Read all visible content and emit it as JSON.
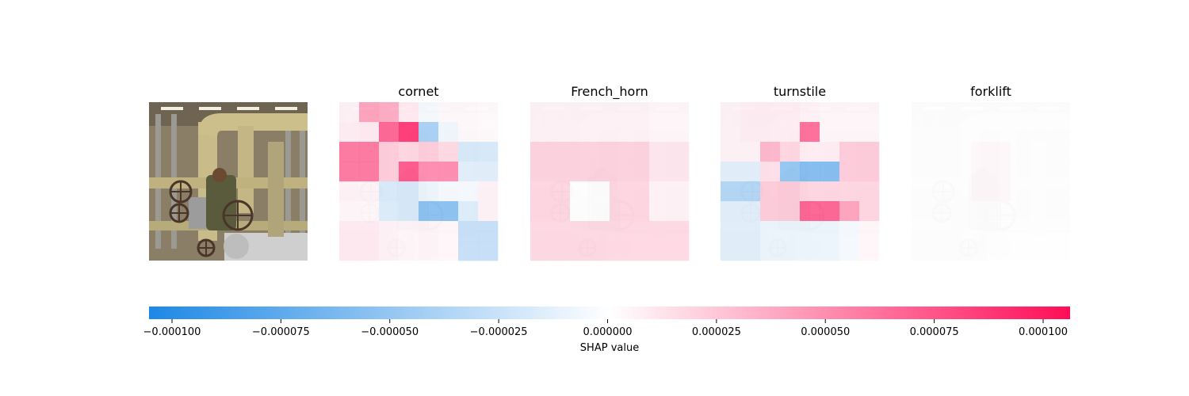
{
  "chart_data": {
    "type": "heatmap",
    "description_image": "industrial pipes and valves with a worker",
    "panels": [
      {
        "title": "cornet",
        "grid": [
          [
            0.06,
            0.45,
            0.4,
            0.1,
            -0.05,
            0.03,
            0.03,
            0.02
          ],
          [
            0.08,
            0.1,
            0.75,
            0.95,
            -0.45,
            -0.08,
            0.03,
            0.02
          ],
          [
            0.65,
            0.65,
            0.25,
            0.2,
            0.25,
            0.18,
            -0.22,
            -0.2
          ],
          [
            0.65,
            0.65,
            0.25,
            0.8,
            0.55,
            0.55,
            -0.15,
            -0.15
          ],
          [
            0.06,
            0.05,
            -0.2,
            -0.2,
            -0.1,
            -0.05,
            -0.05,
            0.06
          ],
          [
            0.04,
            0.03,
            -0.18,
            -0.2,
            -0.6,
            -0.6,
            -0.18,
            0.06
          ],
          [
            0.1,
            0.1,
            0.06,
            0.04,
            0.05,
            0.04,
            -0.3,
            -0.3
          ],
          [
            0.1,
            0.1,
            0.06,
            0.04,
            0.05,
            0.04,
            -0.3,
            -0.3
          ]
        ]
      },
      {
        "title": "French_horn",
        "grid": [
          [
            0.06,
            0.06,
            0.06,
            0.06,
            0.06,
            0.06,
            0.04,
            0.04
          ],
          [
            0.06,
            0.06,
            0.06,
            0.06,
            0.06,
            0.06,
            0.04,
            0.04
          ],
          [
            0.22,
            0.22,
            0.22,
            0.22,
            0.22,
            0.22,
            0.12,
            0.12
          ],
          [
            0.22,
            0.22,
            0.22,
            0.22,
            0.22,
            0.22,
            0.12,
            0.12
          ],
          [
            0.2,
            0.2,
            0.0,
            0.0,
            0.2,
            0.2,
            0.06,
            0.06
          ],
          [
            0.2,
            0.2,
            0.0,
            0.0,
            0.2,
            0.2,
            0.06,
            0.06
          ],
          [
            0.18,
            0.18,
            0.18,
            0.18,
            0.18,
            0.18,
            0.18,
            0.18
          ],
          [
            0.18,
            0.18,
            0.18,
            0.18,
            0.18,
            0.18,
            0.18,
            0.18
          ]
        ]
      },
      {
        "title": "turnstile",
        "grid": [
          [
            0.06,
            0.08,
            0.08,
            0.08,
            0.06,
            0.04,
            0.04,
            0.04
          ],
          [
            0.06,
            0.08,
            0.08,
            0.08,
            0.7,
            0.04,
            0.04,
            0.04
          ],
          [
            0.06,
            0.06,
            0.35,
            0.2,
            0.08,
            0.08,
            0.25,
            0.25
          ],
          [
            -0.15,
            -0.15,
            0.15,
            -0.55,
            -0.65,
            -0.65,
            0.25,
            0.25
          ],
          [
            -0.4,
            -0.4,
            0.25,
            0.25,
            0.2,
            0.2,
            0.2,
            0.2
          ],
          [
            -0.15,
            -0.15,
            0.25,
            0.25,
            0.75,
            0.75,
            0.45,
            0.2
          ],
          [
            -0.15,
            -0.15,
            -0.1,
            -0.1,
            -0.1,
            -0.1,
            -0.05,
            0.04
          ],
          [
            -0.15,
            -0.15,
            -0.1,
            -0.1,
            -0.1,
            -0.1,
            -0.05,
            0.04
          ]
        ]
      },
      {
        "title": "forklift",
        "grid": [
          [
            0.0,
            0.0,
            0.0,
            0.0,
            0.0,
            0.0,
            0.0,
            0.0
          ],
          [
            0.0,
            0.0,
            0.0,
            0.0,
            0.0,
            0.0,
            0.0,
            0.0
          ],
          [
            0.0,
            0.0,
            0.0,
            0.03,
            0.03,
            0.0,
            0.0,
            0.0
          ],
          [
            0.0,
            0.0,
            0.0,
            0.03,
            0.03,
            0.0,
            0.0,
            0.0
          ],
          [
            0.0,
            0.0,
            0.0,
            0.03,
            0.03,
            0.0,
            0.0,
            0.0
          ],
          [
            0.0,
            0.0,
            0.0,
            0.0,
            0.0,
            0.0,
            0.0,
            0.0
          ],
          [
            0.0,
            0.0,
            0.0,
            0.0,
            0.0,
            0.0,
            0.0,
            0.0
          ],
          [
            0.0,
            0.0,
            0.0,
            0.0,
            0.0,
            0.0,
            0.0,
            0.0
          ]
        ]
      }
    ],
    "colorbar": {
      "label": "SHAP value",
      "range": [
        -0.0001,
        0.0001
      ],
      "ticks": [
        "−0.000100",
        "−0.000075",
        "−0.000050",
        "−0.000025",
        "0.000000",
        "0.000025",
        "0.000050",
        "0.000075",
        "0.000100"
      ],
      "negative_color": "#1e88e5",
      "positive_color": "#ff0d57",
      "mid_color": "#ffffff"
    }
  }
}
